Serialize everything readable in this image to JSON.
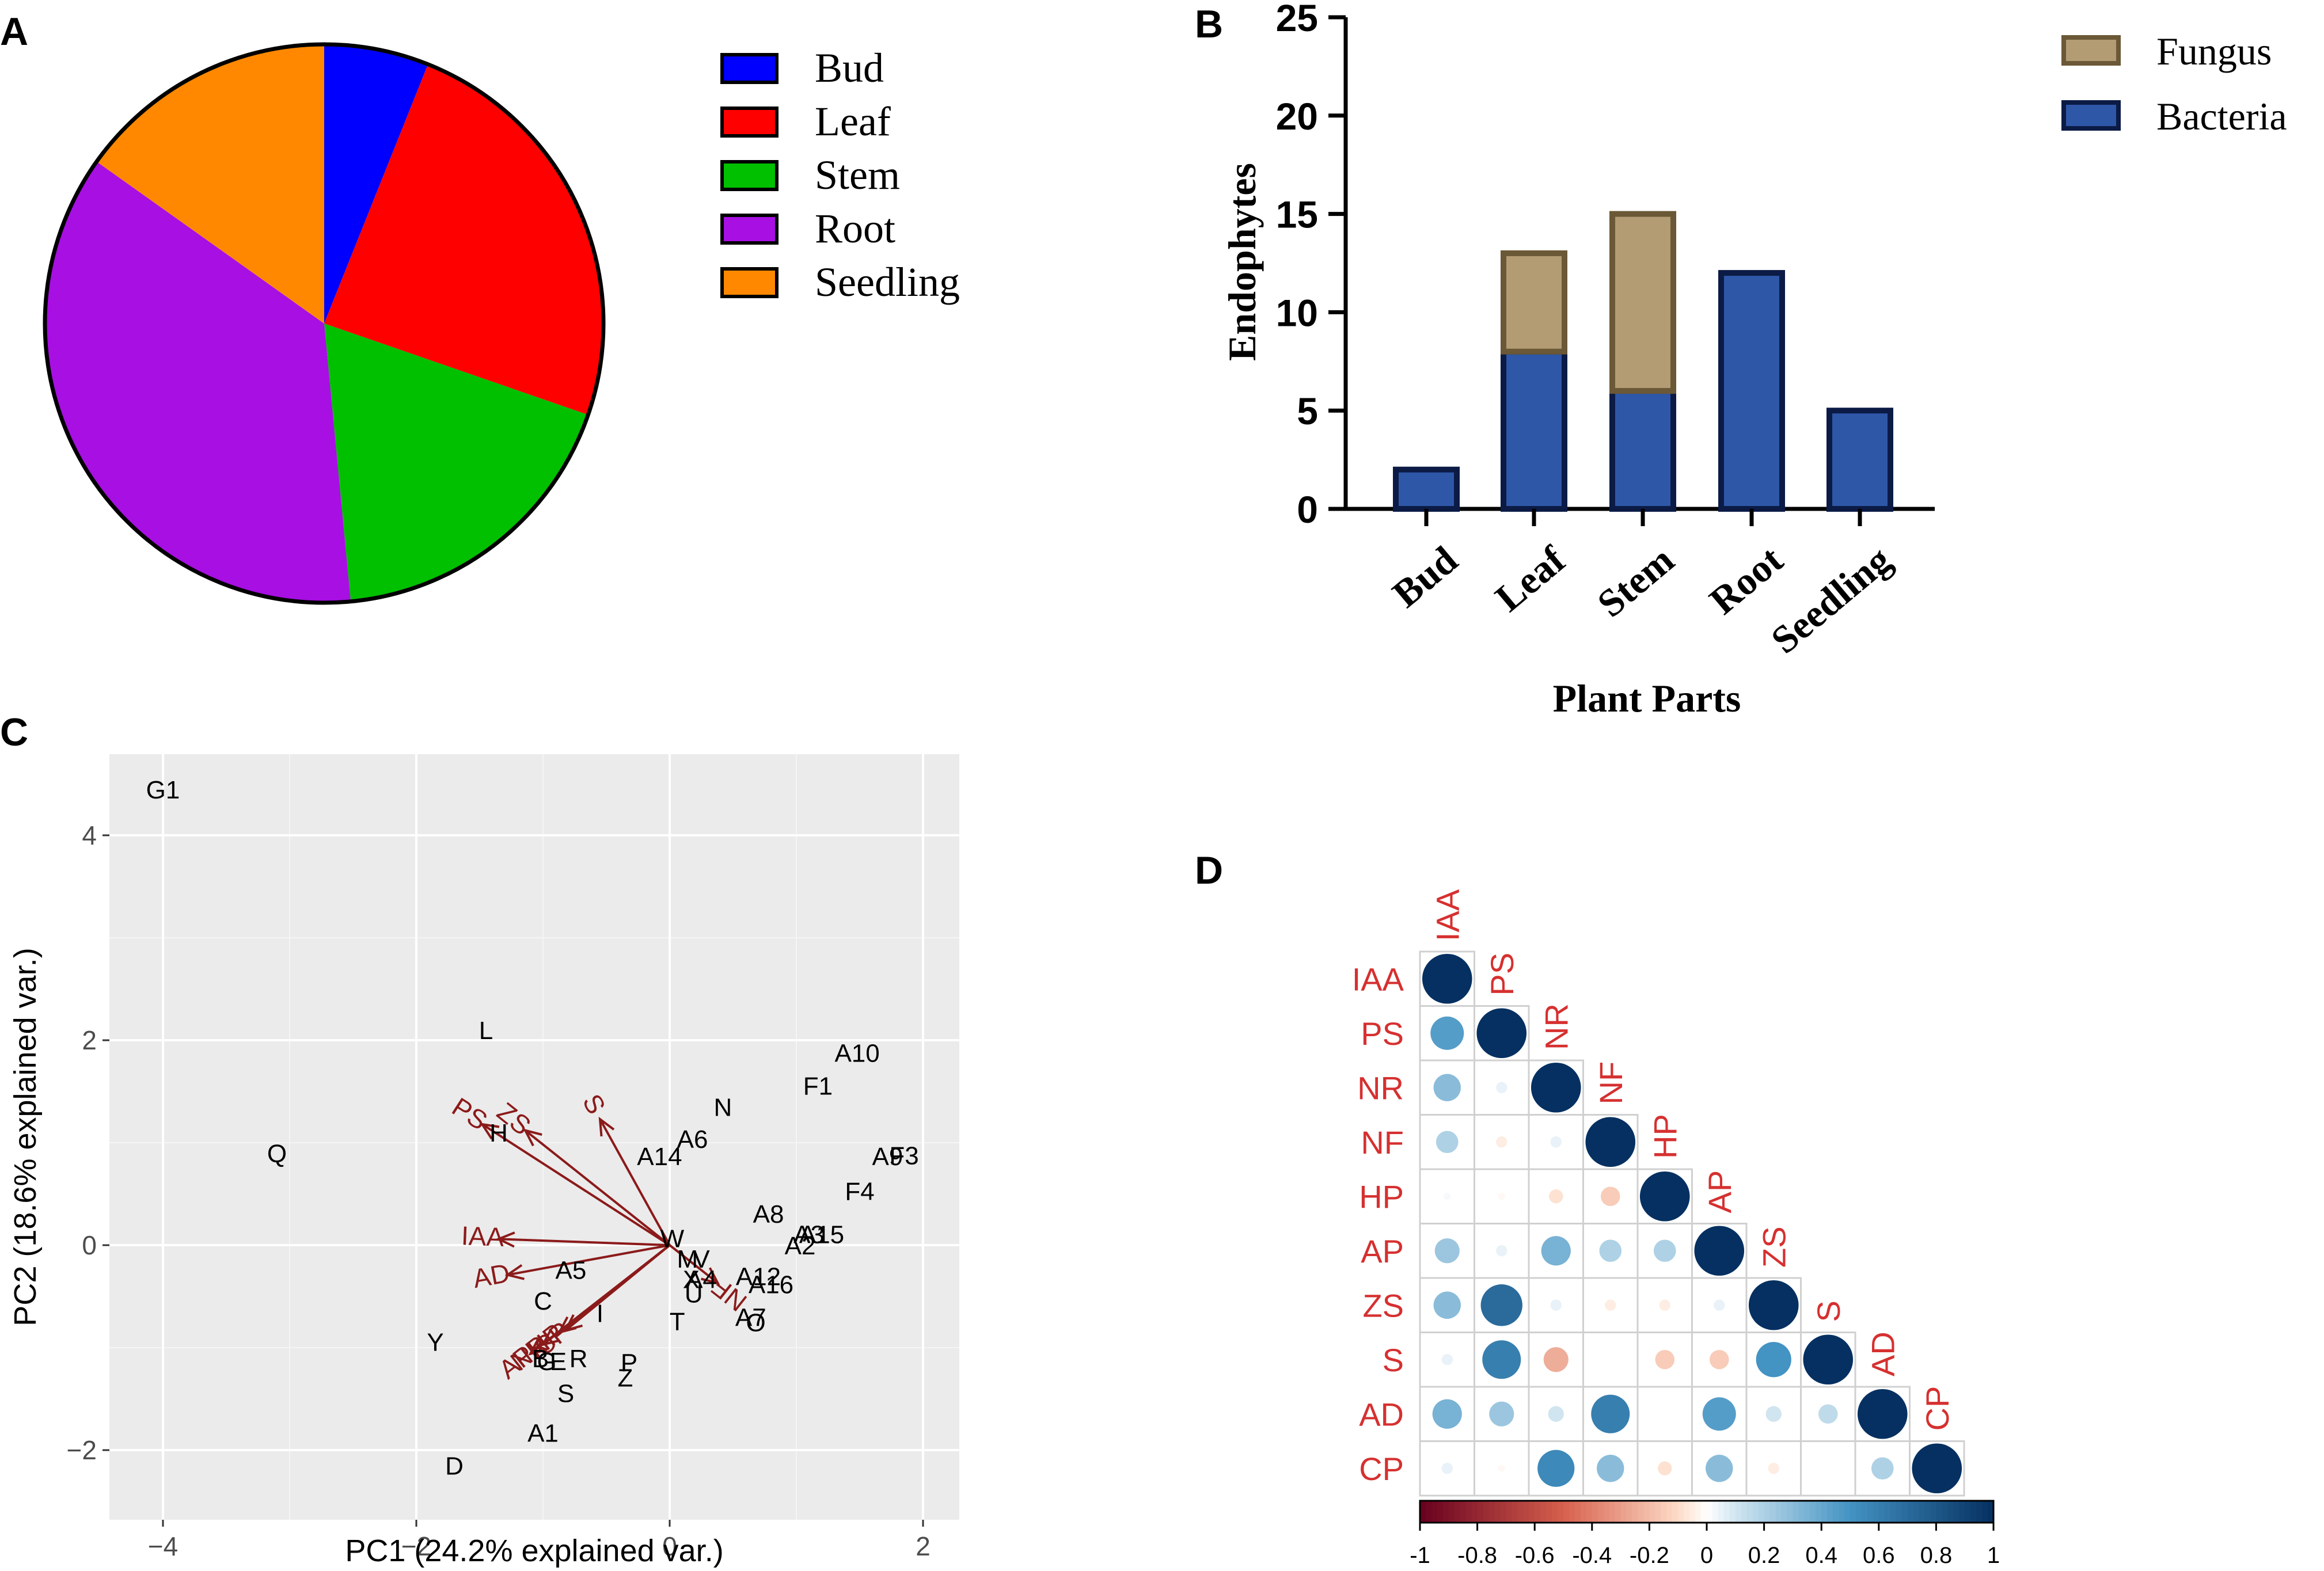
{
  "colors": {
    "bud": "#0000FF",
    "leaf": "#FF0000",
    "stem": "#00C000",
    "root": "#A70FE3",
    "seedling": "#FF8800",
    "fungus_fill": "#B39C74",
    "fungus_edge": "#6B5836",
    "bacteria_fill": "#2F57A8",
    "bacteria_edge": "#0B1B45",
    "arrow": "#8B1A1A",
    "panel_bg": "#EBEBEB",
    "corr_label": "#D63030"
  },
  "chart_data": [
    {
      "panel": "A",
      "type": "pie",
      "title": "",
      "start_angle_deg": 0,
      "direction": "clockwise",
      "slices": [
        {
          "label": "Bud",
          "value": 2,
          "color": "#0000FF"
        },
        {
          "label": "Leaf",
          "value": 8,
          "color": "#FF0000"
        },
        {
          "label": "Stem",
          "value": 6,
          "color": "#00C000"
        },
        {
          "label": "Root",
          "value": 12,
          "color": "#A70FE3"
        },
        {
          "label": "Seedling",
          "value": 5,
          "color": "#FF8800"
        }
      ]
    },
    {
      "panel": "B",
      "type": "bar",
      "stacked": true,
      "categories": [
        "Bud",
        "Leaf",
        "Stem",
        "Root",
        "Seedling"
      ],
      "series": [
        {
          "name": "Bacteria",
          "values": [
            2,
            8,
            6,
            12,
            5
          ]
        },
        {
          "name": "Fungus",
          "values": [
            0,
            5,
            9,
            0,
            0
          ]
        }
      ],
      "legend": [
        "Fungus",
        "Bacteria"
      ],
      "xlabel": "Plant Parts",
      "ylabel": "Endophytes",
      "ylim": [
        0,
        25
      ],
      "yticks": [
        "0",
        "5",
        "10",
        "15",
        "20",
        "25"
      ]
    },
    {
      "panel": "C",
      "type": "scatter",
      "subtype": "pca-biplot",
      "xlabel": "PC1 (24.2% explained var.)",
      "ylabel": "PC2 (18.6% explained var.)",
      "xlim": [
        -4.25,
        2.2
      ],
      "ylim": [
        -2.5,
        4.8
      ],
      "xticks": [
        -4,
        -2,
        0,
        2
      ],
      "xtick_labels": [
        "−4",
        "−2",
        "0",
        "2"
      ],
      "yticks": [
        -2,
        0,
        2,
        4
      ],
      "ytick_labels": [
        "−2",
        "0",
        "2",
        "4"
      ],
      "points": [
        {
          "label": "G1",
          "x": -4.0,
          "y": 4.45
        },
        {
          "label": "Q",
          "x": -3.1,
          "y": 0.9
        },
        {
          "label": "L",
          "x": -1.45,
          "y": 2.1
        },
        {
          "label": "H",
          "x": -1.35,
          "y": 1.1
        },
        {
          "label": "A10",
          "x": 1.48,
          "y": 1.88
        },
        {
          "label": "F1",
          "x": 1.17,
          "y": 1.56
        },
        {
          "label": "N",
          "x": 0.42,
          "y": 1.35
        },
        {
          "label": "A6",
          "x": 0.18,
          "y": 1.04
        },
        {
          "label": "A14",
          "x": -0.08,
          "y": 0.87
        },
        {
          "label": "F3",
          "x": 1.85,
          "y": 0.88
        },
        {
          "label": "A9",
          "x": 1.72,
          "y": 0.87
        },
        {
          "label": "F4",
          "x": 1.5,
          "y": 0.53
        },
        {
          "label": "A8",
          "x": 0.78,
          "y": 0.31
        },
        {
          "label": "A15",
          "x": 1.2,
          "y": 0.11
        },
        {
          "label": "A3",
          "x": 1.1,
          "y": 0.11
        },
        {
          "label": "A2",
          "x": 1.03,
          "y": 0.0
        },
        {
          "label": "W",
          "x": 0.02,
          "y": 0.07
        },
        {
          "label": "M",
          "x": 0.14,
          "y": -0.13
        },
        {
          "label": "V",
          "x": 0.25,
          "y": -0.13
        },
        {
          "label": "X",
          "x": 0.17,
          "y": -0.33
        },
        {
          "label": "A4",
          "x": 0.25,
          "y": -0.33
        },
        {
          "label": "U",
          "x": 0.19,
          "y": -0.47
        },
        {
          "label": "A12",
          "x": 0.7,
          "y": -0.3
        },
        {
          "label": "A16",
          "x": 0.8,
          "y": -0.38
        },
        {
          "label": "A7",
          "x": 0.64,
          "y": -0.7
        },
        {
          "label": "O",
          "x": 0.68,
          "y": -0.75
        },
        {
          "label": "T",
          "x": 0.06,
          "y": -0.74
        },
        {
          "label": "A5",
          "x": -0.78,
          "y": -0.24
        },
        {
          "label": "C",
          "x": -1.0,
          "y": -0.54
        },
        {
          "label": "I",
          "x": -0.55,
          "y": -0.66
        },
        {
          "label": "Y",
          "x": -1.85,
          "y": -0.94
        },
        {
          "label": "B",
          "x": -1.02,
          "y": -1.1
        },
        {
          "label": "G",
          "x": -0.97,
          "y": -1.13
        },
        {
          "label": "E",
          "x": -0.88,
          "y": -1.13
        },
        {
          "label": "R",
          "x": -0.72,
          "y": -1.1
        },
        {
          "label": "S",
          "x": -0.82,
          "y": -1.44
        },
        {
          "label": "P",
          "x": -0.32,
          "y": -1.14
        },
        {
          "label": "Z",
          "x": -0.35,
          "y": -1.29
        },
        {
          "label": "A1",
          "x": -1.0,
          "y": -1.83
        },
        {
          "label": "D",
          "x": -1.7,
          "y": -2.15
        }
      ],
      "arrow_origin": [
        0,
        0
      ],
      "loadings": [
        {
          "label": "PS",
          "x": -1.48,
          "y": 1.18
        },
        {
          "label": "ZS",
          "x": -1.14,
          "y": 1.12
        },
        {
          "label": "S",
          "x": -0.55,
          "y": 1.23
        },
        {
          "label": "IAA",
          "x": -1.35,
          "y": 0.06
        },
        {
          "label": "AD",
          "x": -1.28,
          "y": -0.29
        },
        {
          "label": "AP",
          "x": -1.1,
          "y": -1.06
        },
        {
          "label": "NR",
          "x": -1.0,
          "y": -0.97
        },
        {
          "label": "HP",
          "x": -0.87,
          "y": -0.85
        },
        {
          "label": "CP",
          "x": -0.82,
          "y": -0.83
        },
        {
          "label": "NF",
          "x": 0.38,
          "y": -0.37
        }
      ]
    },
    {
      "panel": "D",
      "type": "heatmap",
      "subtype": "correlation-lower-triangle",
      "variables": [
        "IAA",
        "PS",
        "NR",
        "NF",
        "HP",
        "AP",
        "ZS",
        "S",
        "AD",
        "CP"
      ],
      "matrix": [
        [
          1,
          0.45,
          0.3,
          0.2,
          0.02,
          0.25,
          0.3,
          0.05,
          0.35,
          0.05
        ],
        [
          0.45,
          1,
          0.05,
          -0.05,
          -0.02,
          0.05,
          0.7,
          0.6,
          0.25,
          -0.02
        ],
        [
          0.3,
          0.05,
          1,
          0.05,
          -0.08,
          0.35,
          0.05,
          -0.25,
          0.1,
          0.55
        ],
        [
          0.2,
          -0.05,
          0.05,
          1,
          -0.15,
          0.2,
          -0.05,
          0.0,
          0.6,
          0.3
        ],
        [
          0.02,
          -0.02,
          -0.08,
          -0.15,
          1,
          0.2,
          -0.05,
          -0.15,
          0.0,
          -0.08
        ],
        [
          0.25,
          0.05,
          0.35,
          0.2,
          0.2,
          1,
          0.05,
          -0.15,
          0.45,
          0.3
        ],
        [
          0.3,
          0.7,
          0.05,
          -0.05,
          -0.05,
          0.05,
          1,
          0.5,
          0.1,
          -0.05
        ],
        [
          0.05,
          0.6,
          -0.25,
          0.0,
          -0.15,
          -0.15,
          0.5,
          1,
          0.15,
          0.0
        ],
        [
          0.35,
          0.25,
          0.1,
          0.6,
          0.0,
          0.45,
          0.1,
          0.15,
          1,
          0.2
        ],
        [
          0.05,
          -0.02,
          0.55,
          0.3,
          -0.08,
          0.3,
          -0.05,
          0.0,
          0.2,
          1
        ]
      ],
      "colorbar_ticks": [
        "-1",
        "-0.8",
        "-0.6",
        "-0.4",
        "-0.2",
        "0",
        "0.2",
        "0.4",
        "0.6",
        "0.8",
        "1"
      ],
      "range": [
        -1,
        1
      ]
    }
  ],
  "panel_labels": {
    "a": "A",
    "b": "B",
    "c": "C",
    "d": "D"
  }
}
